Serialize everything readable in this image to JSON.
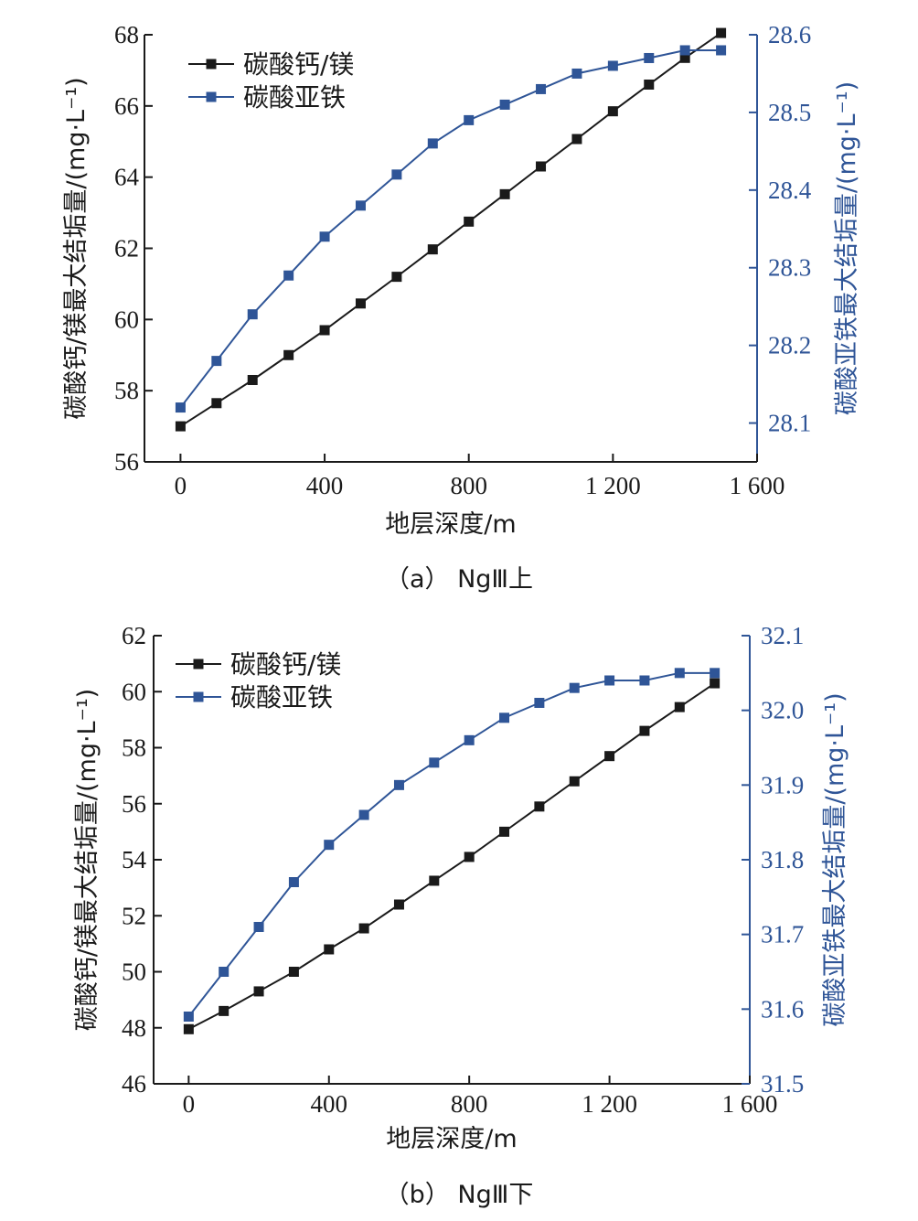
{
  "colors": {
    "primary": "#1a1a1a",
    "secondary": "#2f5597"
  },
  "chart_data": [
    {
      "type": "line",
      "caption": "（a） NgⅢ上",
      "xlabel": "地层深度/m",
      "ylabel": "碳酸钙/镁最大结垢量/(mg·L⁻¹)",
      "y2label": "碳酸亚铁最大结垢量/(mg·L⁻¹)",
      "xlim": [
        -100,
        1600
      ],
      "ylim": [
        56,
        68
      ],
      "y2lim": [
        28.05,
        28.6
      ],
      "xticks": [
        0,
        400,
        800,
        1200,
        1600
      ],
      "xtick_labels": [
        "0",
        "400",
        "800",
        "1 200",
        "1 600"
      ],
      "yticks": [
        56,
        58,
        60,
        62,
        64,
        66,
        68
      ],
      "y2ticks": [
        28.1,
        28.2,
        28.3,
        28.4,
        28.5,
        28.6
      ],
      "y2tick_labels": [
        "28.1",
        "28.2",
        "28.3",
        "28.4",
        "28.5",
        "28.6"
      ],
      "legend_position": "top-left",
      "x": [
        0,
        100,
        200,
        300,
        400,
        500,
        600,
        700,
        800,
        900,
        1000,
        1100,
        1200,
        1300,
        1400,
        1500
      ],
      "series": [
        {
          "name": "碳酸钙/镁",
          "axis": "left",
          "color": "#1a1a1a",
          "values": [
            57.0,
            57.65,
            58.3,
            59.0,
            59.7,
            60.45,
            61.2,
            61.97,
            62.75,
            63.52,
            64.3,
            65.07,
            65.85,
            66.6,
            67.35,
            68.05
          ]
        },
        {
          "name": "碳酸亚铁",
          "axis": "right",
          "color": "#2f5597",
          "values": [
            28.12,
            28.18,
            28.24,
            28.29,
            28.34,
            28.38,
            28.42,
            28.46,
            28.49,
            28.51,
            28.53,
            28.55,
            28.56,
            28.57,
            28.58,
            28.58
          ]
        }
      ]
    },
    {
      "type": "line",
      "caption": "（b） NgⅢ下",
      "xlabel": "地层深度/m",
      "ylabel": "碳酸钙/镁最大结垢量/(mg·L⁻¹)",
      "y2label": "碳酸亚铁最大结垢量/(mg·L⁻¹)",
      "xlim": [
        -100,
        1600
      ],
      "ylim": [
        46,
        62
      ],
      "y2lim": [
        31.5,
        32.1
      ],
      "xticks": [
        0,
        400,
        800,
        1200,
        1600
      ],
      "xtick_labels": [
        "0",
        "400",
        "800",
        "1 200",
        "1 600"
      ],
      "yticks": [
        46,
        48,
        50,
        52,
        54,
        56,
        58,
        60,
        62
      ],
      "y2ticks": [
        31.5,
        31.6,
        31.7,
        31.8,
        31.9,
        32.0,
        32.1
      ],
      "y2tick_labels": [
        "31.5",
        "31.6",
        "31.7",
        "31.8",
        "31.9",
        "32.0",
        "32.1"
      ],
      "legend_position": "top-left",
      "x": [
        0,
        100,
        200,
        300,
        400,
        500,
        600,
        700,
        800,
        900,
        1000,
        1100,
        1200,
        1300,
        1400,
        1500
      ],
      "series": [
        {
          "name": "碳酸钙/镁",
          "axis": "left",
          "color": "#1a1a1a",
          "values": [
            47.95,
            48.6,
            49.3,
            50.0,
            50.8,
            51.55,
            52.4,
            53.25,
            54.1,
            55.0,
            55.9,
            56.8,
            57.7,
            58.6,
            59.45,
            60.3
          ]
        },
        {
          "name": "碳酸亚铁",
          "axis": "right",
          "color": "#2f5597",
          "values": [
            31.59,
            31.65,
            31.71,
            31.77,
            31.82,
            31.86,
            31.9,
            31.93,
            31.96,
            31.99,
            32.01,
            32.03,
            32.04,
            32.04,
            32.05,
            32.05
          ]
        }
      ]
    }
  ]
}
